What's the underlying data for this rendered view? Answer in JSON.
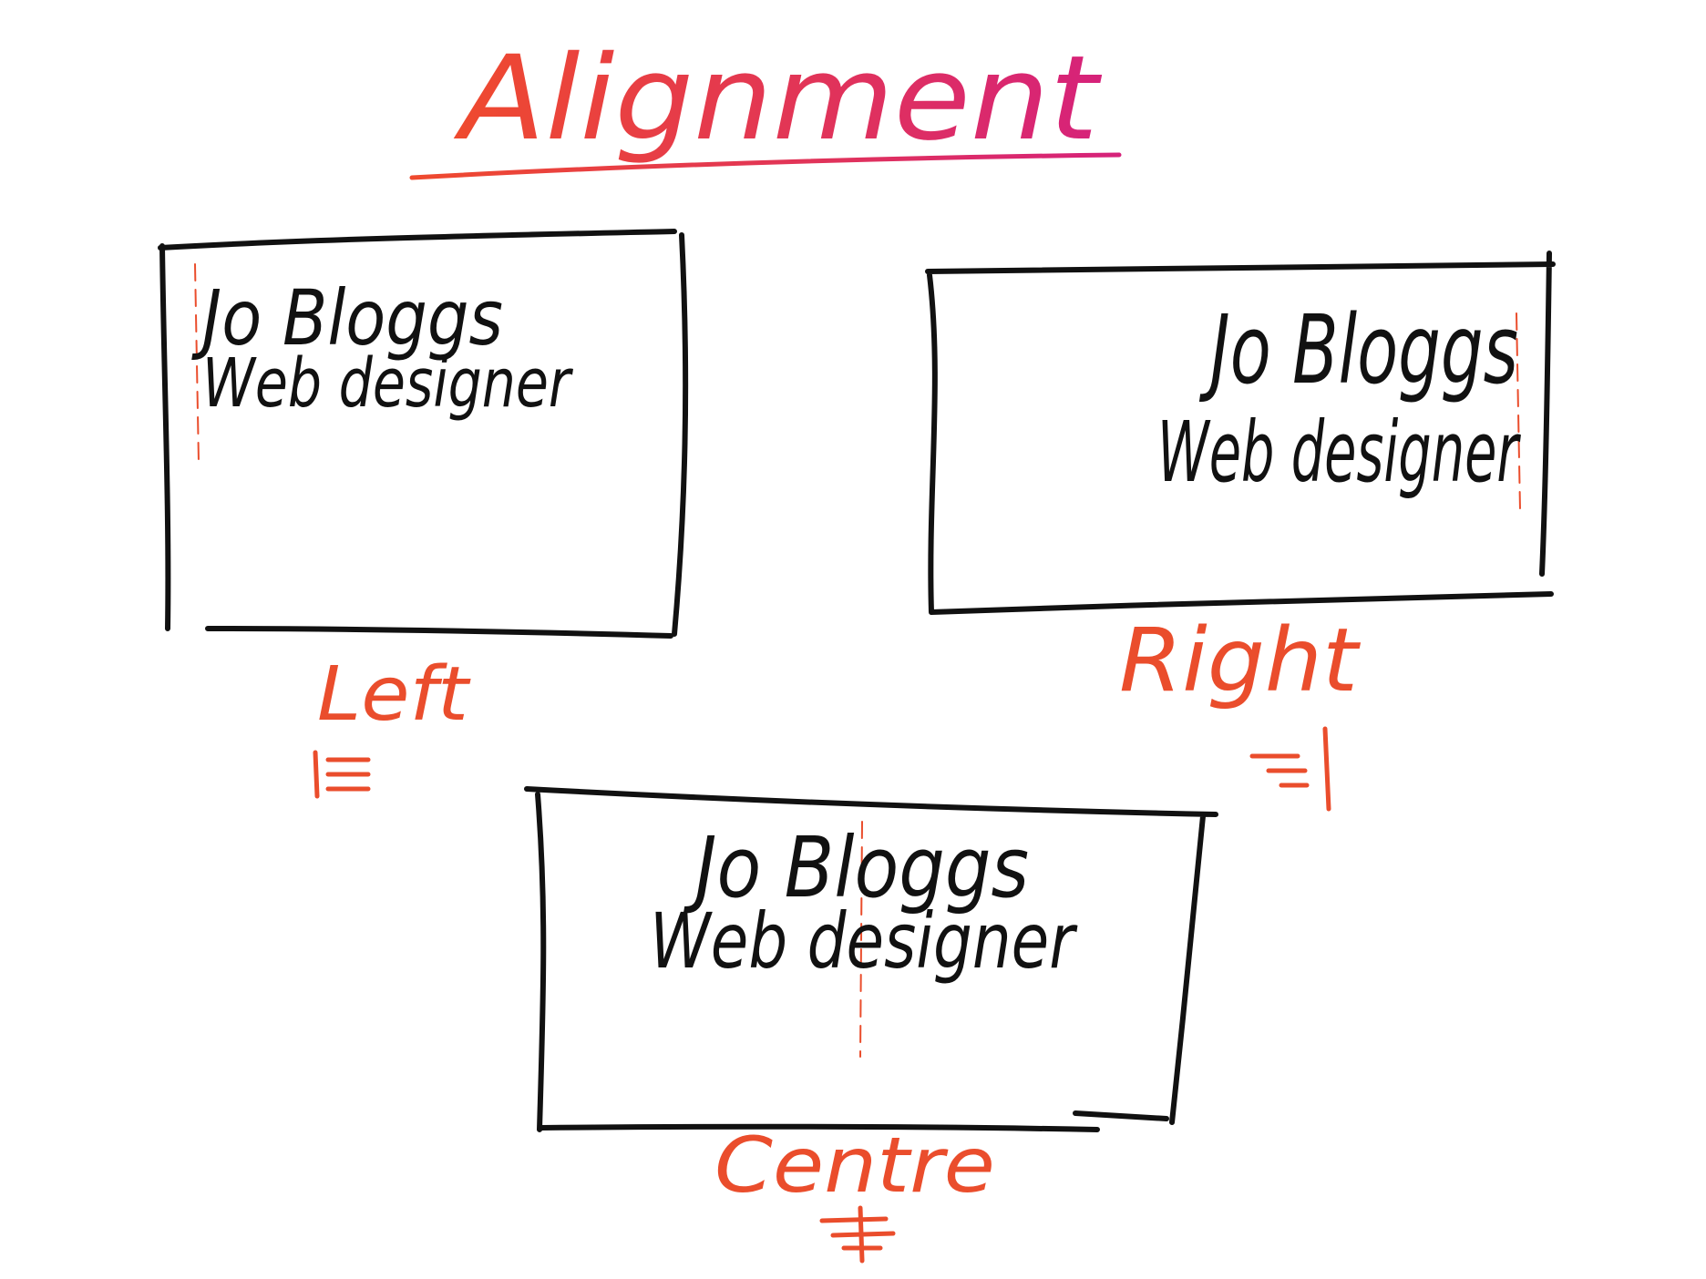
{
  "title": "Alignment",
  "colors": {
    "ink": "#111111",
    "label": "#ea4d2c",
    "title_start": "#ef4a2e",
    "title_end": "#d6227a",
    "guide": "#ea4d2c"
  },
  "cards": [
    {
      "id": "left",
      "name_line": "Jo Bloggs",
      "role_line": "Web designer",
      "alignment_label": "Left",
      "alignment_icon": "align-left-icon"
    },
    {
      "id": "right",
      "name_line": "Jo Bloggs",
      "role_line": "Web designer",
      "alignment_label": "Right",
      "alignment_icon": "align-right-icon"
    },
    {
      "id": "centre",
      "name_line": "Jo Bloggs",
      "role_line": "Web designer",
      "alignment_label": "Centre",
      "alignment_icon": "align-centre-icon"
    }
  ]
}
